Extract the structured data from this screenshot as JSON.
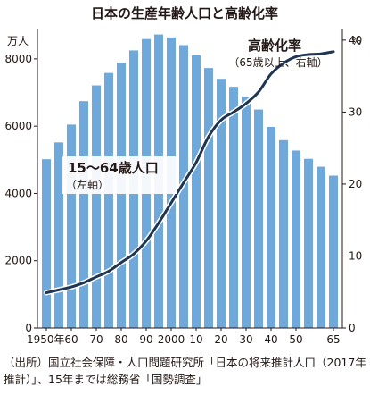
{
  "chart_data": {
    "type": "bar+line",
    "title": "日本の生産年齢人口と高齢化率",
    "y_left": {
      "unit": "万人",
      "ticks": [
        0,
        2000,
        4000,
        6000,
        8000
      ],
      "tick_labels": [
        "0",
        "2000",
        "4000",
        "6000",
        "8000"
      ],
      "range": [
        0,
        8900
      ]
    },
    "y_right": {
      "unit": "%",
      "ticks": [
        0,
        10,
        20,
        30,
        40
      ],
      "tick_labels": [
        "0",
        "10",
        "20",
        "30",
        "40"
      ],
      "range": [
        0,
        41.6
      ]
    },
    "x_tick_labels": [
      {
        "year": 1950,
        "label": "1950年"
      },
      {
        "year": 1960,
        "label": "60"
      },
      {
        "year": 1970,
        "label": "70"
      },
      {
        "year": 1980,
        "label": "80"
      },
      {
        "year": 1990,
        "label": "90"
      },
      {
        "year": 2000,
        "label": "2000"
      },
      {
        "year": 2010,
        "label": "10"
      },
      {
        "year": 2020,
        "label": "20"
      },
      {
        "year": 2030,
        "label": "30"
      },
      {
        "year": 2040,
        "label": "40"
      },
      {
        "year": 2050,
        "label": "50"
      },
      {
        "year": 2065,
        "label": "65"
      }
    ],
    "bars": {
      "name_lines": [
        "15〜64歳人口",
        "（左軸）"
      ],
      "color": "#6fa8da",
      "years": [
        1950,
        1955,
        1960,
        1965,
        1970,
        1975,
        1980,
        1985,
        1990,
        1995,
        2000,
        2005,
        2010,
        2015,
        2020,
        2025,
        2030,
        2035,
        2040,
        2045,
        2050,
        2055,
        2060,
        2065
      ],
      "values": [
        5017,
        5517,
        6047,
        6744,
        7212,
        7581,
        7883,
        8251,
        8590,
        8726,
        8638,
        8409,
        8103,
        7728,
        7406,
        7170,
        6875,
        6494,
        5978,
        5584,
        5275,
        5028,
        4793,
        4529
      ]
    },
    "line": {
      "name": "高齢化率",
      "name_note": "（65歳以上、右軸）",
      "color": "#1f3552",
      "years": [
        1950,
        1955,
        1960,
        1965,
        1970,
        1975,
        1980,
        1985,
        1990,
        1995,
        2000,
        2005,
        2010,
        2015,
        2020,
        2025,
        2030,
        2035,
        2040,
        2045,
        2050,
        2055,
        2060,
        2065
      ],
      "values": [
        4.9,
        5.3,
        5.7,
        6.3,
        7.1,
        7.9,
        9.1,
        10.3,
        12.1,
        14.6,
        17.4,
        20.2,
        23.0,
        26.6,
        28.9,
        30.0,
        31.2,
        32.8,
        35.3,
        36.8,
        37.7,
        38.0,
        38.1,
        38.4
      ]
    },
    "grid": false
  },
  "source_lines": [
    "（出所）国立社会保障・人口問題研究所「日本の将来推計人口（2017年",
    "推計）」、15年までは総務省「国勢調査」"
  ]
}
